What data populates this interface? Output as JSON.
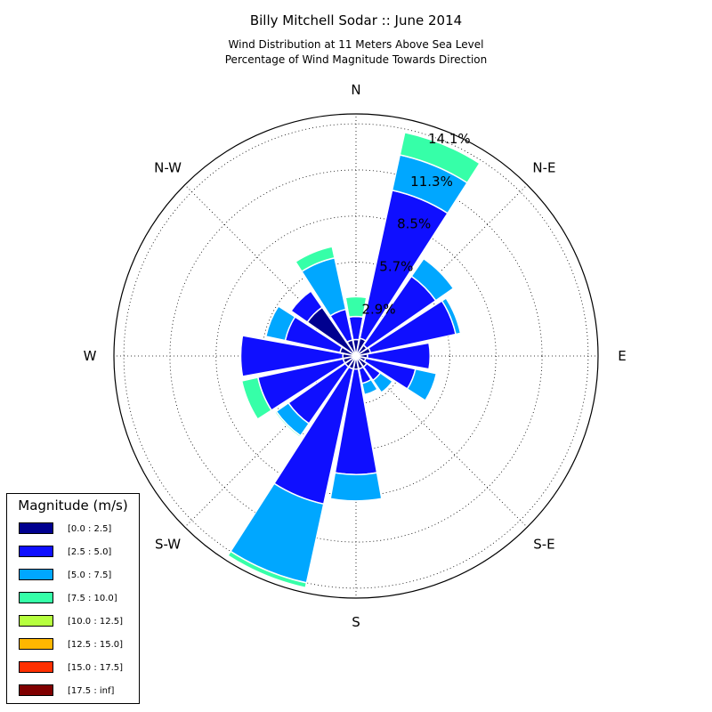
{
  "chart_data": {
    "type": "windrose",
    "title": "Billy Mitchell Sodar :: June 2014",
    "subtitle_lines": [
      "Wind Distribution at 11 Meters Above Sea Level",
      "Percentage of Wind Magnitude Towards Direction"
    ],
    "direction_labels": [
      "N",
      "N-E",
      "E",
      "S-E",
      "S",
      "S-W",
      "W",
      "N-W"
    ],
    "sector_centers_deg": [
      0,
      22.5,
      45,
      67.5,
      90,
      112.5,
      135,
      157.5,
      180,
      202.5,
      225,
      247.5,
      270,
      292.5,
      315,
      337.5
    ],
    "ring_values": [
      2.9,
      5.7,
      8.5,
      11.3,
      14.1
    ],
    "ring_labels": [
      "2.9%",
      "5.7%",
      "8.5%",
      "11.3%",
      "14.1%"
    ],
    "rmax": 14.7,
    "legend": {
      "title": "Magnitude (m/s)",
      "bins": [
        {
          "label": "[0.0 : 2.5]",
          "color": "#00008f"
        },
        {
          "label": "[2.5 : 5.0]",
          "color": "#0f0fff"
        },
        {
          "label": "[5.0 : 7.5]",
          "color": "#00a7ff"
        },
        {
          "label": "[7.5 : 10.0]",
          "color": "#36ffa8"
        },
        {
          "label": "[10.0 : 12.5]",
          "color": "#b6ff3f"
        },
        {
          "label": "[12.5 : 15.0]",
          "color": "#ffb700"
        },
        {
          "label": "[15.0 : 17.5]",
          "color": "#ff3000"
        },
        {
          "label": "[17.5 : inf]",
          "color": "#800000"
        }
      ]
    },
    "series": [
      {
        "name": "[0.0 : 2.5]",
        "values": [
          1.0,
          1.1,
          0.8,
          0.9,
          0.7,
          0.6,
          0.8,
          0.8,
          0.8,
          0.8,
          0.8,
          0.8,
          0.8,
          1.0,
          3.6,
          1.0
        ]
      },
      {
        "name": "[2.5 : 5.0]",
        "values": [
          1.4,
          9.2,
          5.1,
          5.3,
          3.8,
          3.1,
          1.0,
          0.9,
          6.4,
          8.4,
          4.2,
          5.3,
          6.2,
          3.4,
          1.2,
          1.9
        ]
      },
      {
        "name": "[5.0 : 7.5]",
        "values": [
          0.0,
          2.2,
          1.3,
          0.3,
          0.0,
          1.3,
          0.9,
          0.7,
          1.6,
          4.9,
          0.9,
          0.0,
          0.0,
          1.2,
          0.0,
          3.2
        ]
      },
      {
        "name": "[7.5 : 10.0]",
        "values": [
          1.2,
          1.4,
          0.0,
          0.0,
          0.0,
          0.0,
          0.0,
          0.0,
          0.0,
          0.3,
          0.1,
          1.0,
          0.0,
          0.0,
          0.0,
          0.7
        ]
      }
    ]
  }
}
